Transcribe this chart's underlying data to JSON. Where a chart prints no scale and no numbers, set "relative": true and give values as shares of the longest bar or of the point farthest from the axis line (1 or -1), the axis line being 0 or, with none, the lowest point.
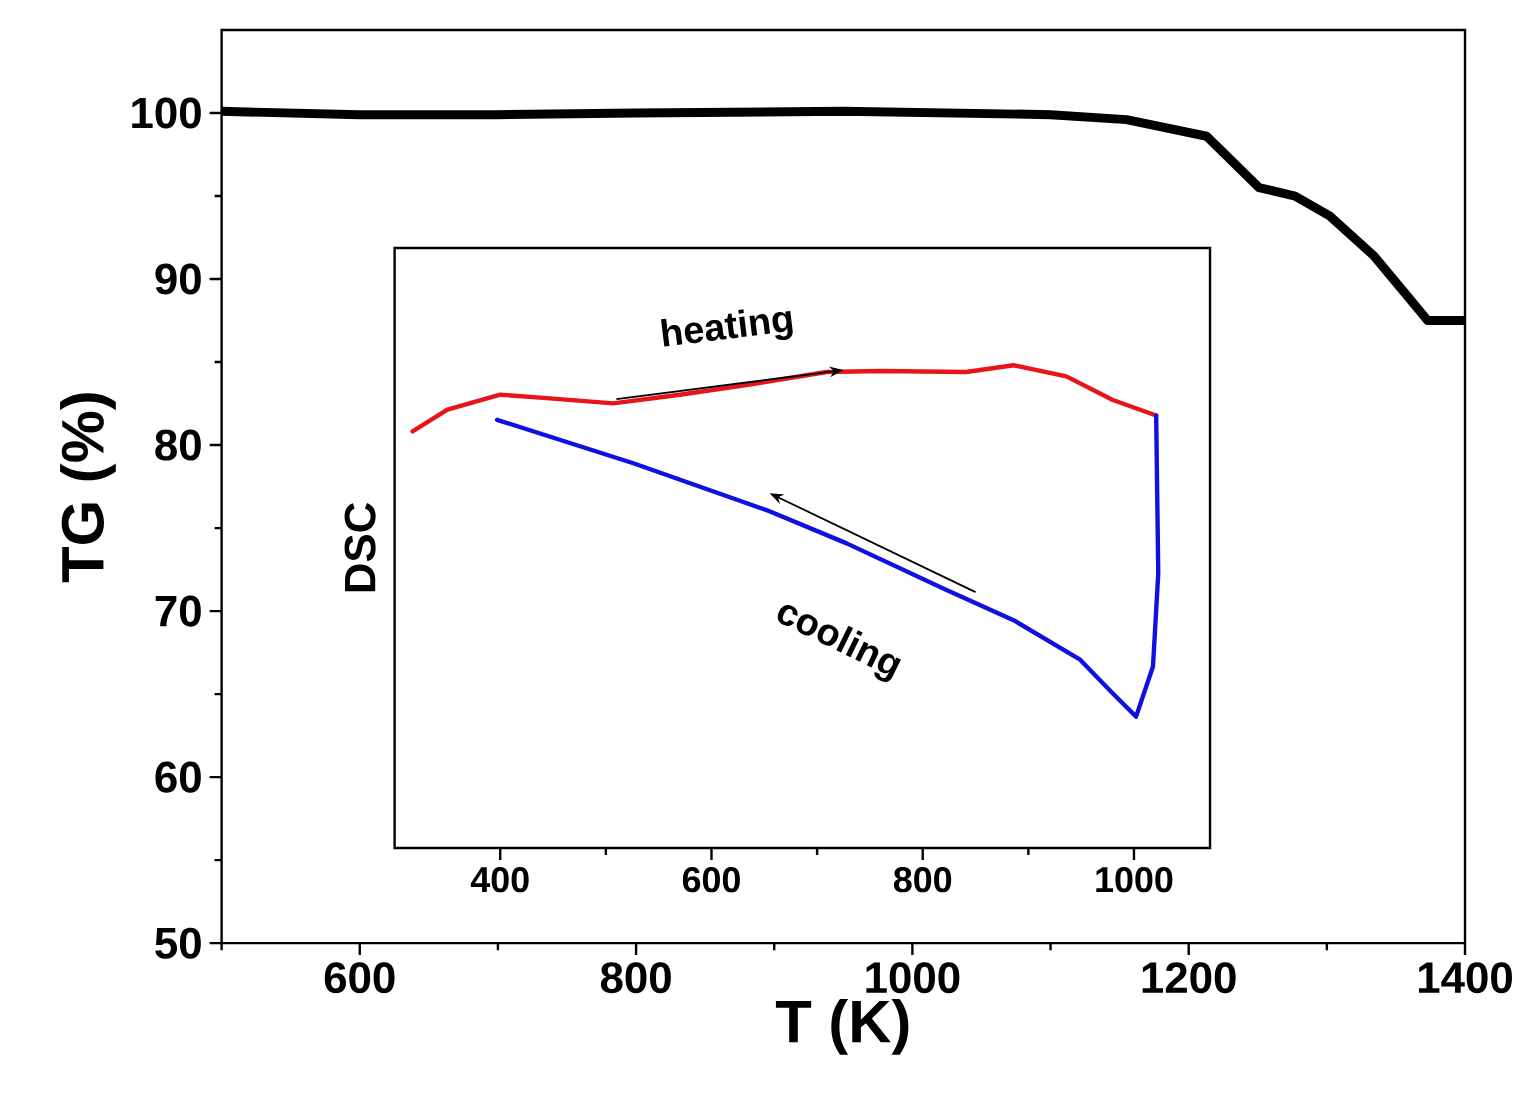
{
  "chart_data": [
    {
      "type": "line",
      "xlabel": "T (K)",
      "ylabel": "TG (%)",
      "xlim": [
        500,
        1400
      ],
      "xticks": [
        {
          "value": 500,
          "label": null
        },
        600,
        {
          "value": 700,
          "label": null
        },
        800,
        {
          "value": 900,
          "label": null
        },
        1000,
        {
          "value": 1100,
          "label": null
        },
        1200,
        {
          "value": 1300,
          "label": null
        },
        1400
      ],
      "ylim": [
        50,
        105
      ],
      "yticks": [
        50,
        {
          "value": 55,
          "label": null
        },
        60,
        {
          "value": 65,
          "label": null
        },
        70,
        {
          "value": 75,
          "label": null
        },
        80,
        {
          "value": 85,
          "label": null
        },
        90,
        {
          "value": 95,
          "label": null
        },
        100
      ],
      "x": [
        500,
        600,
        700,
        800,
        950,
        1100,
        1155,
        1213,
        1251,
        1277,
        1302,
        1334,
        1360,
        1373,
        1400
      ],
      "series": [
        {
          "color": "#000000",
          "values": [
            100.1,
            99.9,
            99.9,
            100.0,
            100.1,
            99.9,
            99.6,
            98.6,
            95.5,
            95.0,
            93.8,
            91.4,
            88.8,
            87.5,
            87.5
          ]
        }
      ]
    },
    {
      "type": "line",
      "ylabel": "DSC",
      "relative": true,
      "tick_labels": "x",
      "xlim": [
        300,
        1072
      ],
      "xticks": [
        400,
        {
          "value": 500,
          "label": null
        },
        600,
        {
          "value": 700,
          "label": null
        },
        800,
        {
          "value": 900,
          "label": null
        },
        1000
      ],
      "annotations": [
        "heating",
        "cooling"
      ],
      "series": [
        {
          "color": "#e8141c",
          "x": [
            317,
            350,
            400,
            444,
            507,
            570,
            633,
            709,
            760,
            841,
            886,
            936,
            980,
            1021
          ],
          "values": [
            0.863,
            0.908,
            0.939,
            0.932,
            0.921,
            0.939,
            0.959,
            0.986,
            0.988,
            0.986,
            1.0,
            0.977,
            0.928,
            0.896
          ]
        },
        {
          "color": "#1010e0",
          "x": [
            1021,
            1023,
            1018,
            1002,
            980,
            949,
            886,
            822,
            728,
            652,
            526,
            397
          ],
          "values": [
            0.896,
            0.569,
            0.376,
            0.272,
            0.32,
            0.39,
            0.472,
            0.535,
            0.631,
            0.7,
            0.797,
            0.887
          ]
        }
      ]
    }
  ]
}
